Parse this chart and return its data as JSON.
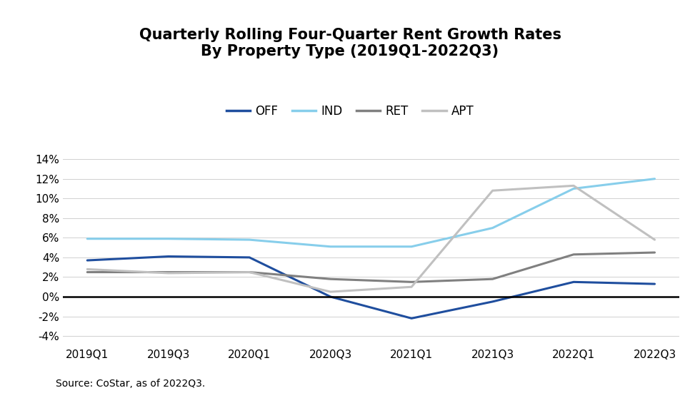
{
  "title": "Quarterly Rolling Four-Quarter Rent Growth Rates\nBy Property Type (2019Q1-2022Q3)",
  "source": "Source: CoStar, as of 2022Q3.",
  "x_labels": [
    "2019Q1",
    "2019Q3",
    "2020Q1",
    "2020Q3",
    "2021Q1",
    "2021Q3",
    "2022Q1",
    "2022Q3"
  ],
  "series": {
    "OFF": {
      "color": "#1f4e9e",
      "linewidth": 2.2,
      "values": [
        3.7,
        4.1,
        4.0,
        0.0,
        -2.2,
        -0.5,
        1.5,
        1.3
      ]
    },
    "IND": {
      "color": "#87CEEB",
      "linewidth": 2.2,
      "values": [
        5.9,
        5.9,
        5.8,
        5.1,
        5.1,
        7.0,
        11.0,
        12.0
      ]
    },
    "RET": {
      "color": "#808080",
      "linewidth": 2.2,
      "values": [
        2.5,
        2.5,
        2.5,
        1.8,
        1.5,
        1.8,
        4.3,
        4.5
      ]
    },
    "APT": {
      "color": "#c0c0c0",
      "linewidth": 2.2,
      "values": [
        2.8,
        2.4,
        2.5,
        0.5,
        1.0,
        10.8,
        11.3,
        5.8
      ]
    }
  },
  "ylim": [
    -5,
    15
  ],
  "yticks": [
    -4,
    -2,
    0,
    2,
    4,
    6,
    8,
    10,
    12,
    14
  ],
  "ytick_labels": [
    "-4%",
    "-2%",
    "0%",
    "2%",
    "4%",
    "6%",
    "8%",
    "10%",
    "12%",
    "14%"
  ],
  "background_color": "#ffffff",
  "title_fontsize": 15,
  "legend_fontsize": 12,
  "tick_fontsize": 11,
  "source_fontsize": 10
}
